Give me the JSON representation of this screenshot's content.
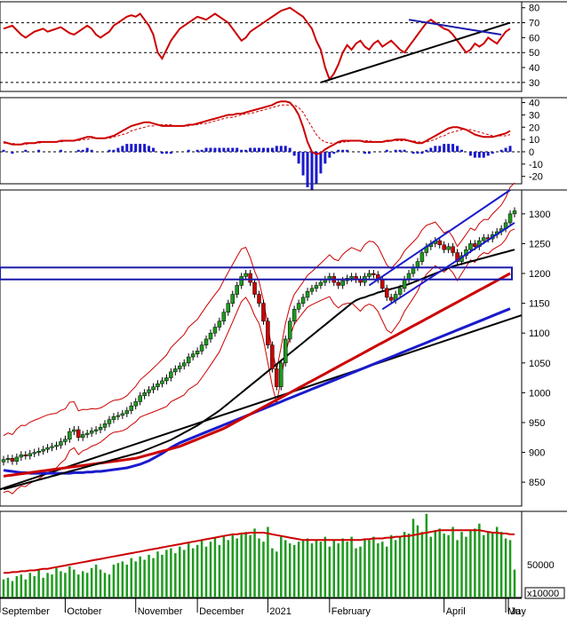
{
  "chart_data": {
    "type": "stock",
    "months": [
      "September",
      "October",
      "November",
      "December",
      "2021",
      "February",
      "April",
      "May",
      "Ju"
    ],
    "volume_multiplier": "x10000",
    "panels": [
      {
        "name": "RSI",
        "yticks": [
          30,
          40,
          50,
          60,
          70,
          80
        ],
        "ylim": [
          24,
          84
        ],
        "dashed_levels": [
          30,
          50,
          70
        ],
        "rsi": [
          66,
          67,
          68,
          65,
          62,
          60,
          62,
          64,
          65,
          66,
          64,
          65,
          66,
          67,
          65,
          63,
          62,
          64,
          66,
          68,
          66,
          62,
          60,
          62,
          64,
          68,
          70,
          72,
          74,
          75,
          74,
          76,
          72,
          68,
          62,
          50,
          46,
          52,
          58,
          62,
          66,
          68,
          70,
          72,
          74,
          73,
          72,
          74,
          76,
          74,
          72,
          70,
          66,
          62,
          58,
          60,
          64,
          66,
          68,
          70,
          72,
          74,
          76,
          78,
          79,
          80,
          78,
          76,
          74,
          70,
          66,
          58,
          52,
          40,
          32,
          36,
          42,
          50,
          55,
          52,
          56,
          58,
          54,
          52,
          56,
          58,
          54,
          56,
          58,
          55,
          52,
          50,
          54,
          58,
          62,
          66,
          70,
          72,
          70,
          68,
          66,
          65,
          62,
          58,
          54,
          50,
          52,
          56,
          54,
          56,
          60,
          58,
          56,
          60,
          64,
          66
        ],
        "overlay_rsi": [
          [
            78,
            33,
            0.0
          ],
          [
            89,
            70,
            0.0
          ]
        ]
      },
      {
        "name": "MACD",
        "yticks": [
          -20,
          -10,
          0,
          10,
          20,
          30,
          40
        ],
        "ylim": [
          -26,
          44
        ],
        "macd": [
          8,
          7,
          6,
          6,
          6,
          7,
          7,
          7,
          8,
          8,
          8,
          8,
          8,
          9,
          9,
          9,
          9,
          10,
          11,
          12,
          12,
          11,
          11,
          11,
          12,
          13,
          15,
          17,
          19,
          21,
          22,
          23,
          24,
          24,
          23,
          22,
          21,
          21,
          21,
          21,
          21,
          21,
          22,
          22,
          23,
          24,
          25,
          26,
          27,
          28,
          29,
          30,
          30,
          31,
          31,
          32,
          33,
          34,
          35,
          36,
          37,
          38,
          40,
          41,
          41,
          40,
          36,
          30,
          20,
          8,
          0,
          -2,
          -1,
          2,
          4,
          6,
          8,
          9,
          9,
          9,
          9,
          9,
          8,
          8,
          8,
          8,
          8,
          9,
          9,
          10,
          10,
          10,
          9,
          8,
          7,
          7,
          9,
          11,
          13,
          15,
          17,
          19,
          20,
          20,
          19,
          18,
          16,
          14,
          13,
          12,
          12,
          12,
          13,
          14,
          15,
          17
        ],
        "signal": [
          7,
          7,
          7,
          6,
          6,
          6,
          7,
          7,
          7,
          8,
          8,
          8,
          8,
          8,
          9,
          9,
          9,
          9,
          10,
          10,
          11,
          11,
          11,
          11,
          11,
          12,
          13,
          14,
          15,
          17,
          18,
          19,
          20,
          21,
          21,
          22,
          22,
          22,
          22,
          21,
          21,
          21,
          21,
          22,
          22,
          23,
          23,
          24,
          25,
          26,
          27,
          28,
          28,
          29,
          30,
          31,
          31,
          32,
          33,
          34,
          35,
          36,
          37,
          38,
          38,
          38,
          38,
          36,
          32,
          26,
          20,
          14,
          10,
          8,
          7,
          7,
          7,
          8,
          8,
          9,
          9,
          9,
          9,
          9,
          8,
          8,
          8,
          8,
          9,
          9,
          9,
          9,
          9,
          9,
          8,
          8,
          8,
          9,
          10,
          12,
          13,
          15,
          16,
          17,
          18,
          18,
          18,
          17,
          16,
          15,
          14,
          13,
          13,
          13,
          13,
          14
        ]
      },
      {
        "name": "Price",
        "yticks": [
          850,
          900,
          950,
          1000,
          1050,
          1100,
          1150,
          1200,
          1250,
          1300
        ],
        "ylim": [
          810,
          1340
        ],
        "close": [
          888,
          890,
          885,
          892,
          896,
          894,
          898,
          900,
          902,
          905,
          908,
          910,
          912,
          918,
          922,
          935,
          938,
          925,
          930,
          932,
          936,
          938,
          942,
          948,
          955,
          960,
          962,
          965,
          970,
          978,
          985,
          995,
          1000,
          1005,
          1010,
          1015,
          1020,
          1025,
          1035,
          1040,
          1045,
          1050,
          1060,
          1065,
          1070,
          1080,
          1090,
          1100,
          1110,
          1120,
          1135,
          1150,
          1165,
          1180,
          1195,
          1200,
          1185,
          1165,
          1150,
          1120,
          1080,
          1040,
          1010,
          1050,
          1090,
          1120,
          1140,
          1150,
          1160,
          1170,
          1175,
          1180,
          1185,
          1190,
          1195,
          1185,
          1180,
          1188,
          1192,
          1195,
          1190,
          1185,
          1195,
          1200,
          1198,
          1190,
          1175,
          1160,
          1155,
          1165,
          1175,
          1190,
          1200,
          1210,
          1220,
          1235,
          1245,
          1250,
          1255,
          1248,
          1240,
          1245,
          1235,
          1220,
          1230,
          1240,
          1250,
          1245,
          1255,
          1260,
          1258,
          1265,
          1270,
          1275,
          1285,
          1300,
          1305
        ],
        "ma_black": [
          838,
          840,
          842,
          844,
          846,
          848,
          850,
          852,
          854,
          856,
          858,
          860,
          862,
          864,
          866,
          868,
          870,
          872,
          874,
          876,
          878,
          880,
          882,
          884,
          886,
          888,
          890,
          892,
          894,
          896,
          898,
          900,
          903,
          906,
          909,
          912,
          915,
          918,
          921,
          925,
          929,
          933,
          937,
          941,
          945,
          950,
          955,
          960,
          965,
          970,
          976,
          982,
          988,
          994,
          1000,
          1006,
          1012,
          1018,
          1024,
          1030,
          1036,
          1042,
          1048,
          1054,
          1060,
          1066,
          1072,
          1078,
          1084,
          1090,
          1096,
          1102,
          1108,
          1114,
          1120,
          1126,
          1132,
          1138,
          1144,
          1150,
          1155,
          1158,
          1160,
          1163,
          1165,
          1168,
          1170,
          1172,
          1174,
          1176,
          1178,
          1180,
          1182,
          1185,
          1188,
          1191,
          1194,
          1197,
          1200,
          1203,
          1206,
          1209,
          1212,
          1214,
          1216,
          1218,
          1220,
          1222,
          1224,
          1226,
          1228,
          1230,
          1232,
          1234,
          1236,
          1238,
          1240
        ],
        "ma_red": [
          860,
          861,
          862,
          863,
          864,
          865,
          866,
          867,
          868,
          869,
          870,
          871,
          872,
          873,
          874,
          875,
          876,
          877,
          878,
          879,
          880,
          881,
          882,
          883,
          884,
          885,
          886,
          887,
          888,
          889,
          890,
          892,
          894,
          896,
          898,
          900,
          902,
          904,
          906,
          908,
          910,
          913,
          916,
          919,
          922,
          925,
          928,
          931,
          934,
          937,
          940,
          944,
          948,
          952,
          956,
          960,
          964,
          968,
          972,
          976,
          980,
          984,
          988,
          992,
          996,
          1000,
          1004,
          1008,
          1012,
          1016,
          1020,
          1024,
          1028,
          1032,
          1036,
          1040,
          1044,
          1048,
          1052,
          1056,
          1060,
          1064,
          1068,
          1072,
          1076,
          1080,
          1084,
          1088,
          1092,
          1096,
          1100,
          1104,
          1108,
          1112,
          1116,
          1120,
          1124,
          1128,
          1132,
          1136,
          1140,
          1144,
          1148,
          1152,
          1156,
          1160,
          1164,
          1168,
          1172,
          1176,
          1180,
          1184,
          1188,
          1192,
          1196,
          1200
        ],
        "ma_blue": [
          870,
          869,
          868,
          867,
          866,
          866,
          865,
          865,
          865,
          865,
          865,
          865,
          865,
          865,
          865,
          865,
          866,
          866,
          866,
          867,
          867,
          868,
          868,
          869,
          870,
          871,
          872,
          873,
          874,
          876,
          878,
          880,
          883,
          886,
          890,
          894,
          898,
          903,
          908,
          912,
          916,
          919,
          922,
          925,
          928,
          931,
          934,
          937,
          940,
          943,
          946,
          949,
          952,
          955,
          958,
          961,
          964,
          967,
          970,
          973,
          976,
          979,
          982,
          985,
          988,
          991,
          994,
          997,
          1000,
          1003,
          1006,
          1009,
          1012,
          1015,
          1018,
          1021,
          1024,
          1027,
          1030,
          1033,
          1036,
          1039,
          1042,
          1045,
          1048,
          1051,
          1054,
          1057,
          1060,
          1063,
          1066,
          1069,
          1072,
          1075,
          1078,
          1081,
          1084,
          1087,
          1090,
          1093,
          1096,
          1099,
          1102,
          1105,
          1108,
          1111,
          1114,
          1117,
          1120,
          1123,
          1126,
          1129,
          1132,
          1135,
          1138,
          1141
        ]
      },
      {
        "name": "Volume",
        "yticks": [
          50000
        ],
        "volume": [
          22,
          24,
          20,
          26,
          28,
          22,
          30,
          26,
          34,
          24,
          30,
          28,
          36,
          32,
          30,
          38,
          34,
          28,
          32,
          30,
          36,
          40,
          34,
          30,
          28,
          40,
          42,
          44,
          40,
          48,
          44,
          50,
          46,
          52,
          48,
          56,
          52,
          58,
          60,
          54,
          62,
          58,
          66,
          60,
          64,
          70,
          62,
          68,
          72,
          64,
          74,
          70,
          76,
          72,
          78,
          80,
          76,
          84,
          72,
          68,
          86,
          60,
          56,
          74,
          70,
          66,
          64,
          68,
          70,
          72,
          66,
          70,
          68,
          74,
          62,
          70,
          66,
          72,
          68,
          74,
          60,
          62,
          72,
          70,
          74,
          66,
          68,
          62,
          76,
          70,
          74,
          80,
          78,
          96,
          88,
          80,
          102,
          74,
          82,
          84,
          78,
          76,
          86,
          70,
          80,
          74,
          82,
          84,
          90,
          76,
          80,
          78,
          86,
          80,
          72,
          70,
          34
        ],
        "volume_ma": [
          30,
          30,
          31,
          31,
          32,
          32,
          33,
          33,
          34,
          35,
          35,
          36,
          37,
          38,
          39,
          40,
          41,
          42,
          43,
          44,
          45,
          46,
          47,
          48,
          49,
          50,
          51,
          52,
          53,
          54,
          55,
          56,
          57,
          58,
          59,
          60,
          61,
          62,
          63,
          64,
          65,
          66,
          67,
          68,
          69,
          70,
          71,
          72,
          73,
          74,
          75,
          76,
          77,
          77,
          78,
          78,
          79,
          79,
          79,
          79,
          78,
          77,
          76,
          75,
          74,
          73,
          72,
          71,
          70,
          70,
          70,
          70,
          70,
          70,
          70,
          70,
          70,
          70,
          70,
          70,
          70,
          70,
          71,
          71,
          72,
          72,
          72,
          73,
          73,
          74,
          74,
          75,
          75,
          76,
          77,
          78,
          79,
          80,
          81,
          82,
          82,
          82,
          82,
          82,
          82,
          82,
          82,
          82,
          82,
          81,
          80,
          79,
          79,
          78,
          78,
          77,
          77
        ]
      }
    ],
    "annotation_lines": [
      "rising support trendline",
      "horizontal resistance band 1190-1210",
      "upward price channel"
    ]
  }
}
